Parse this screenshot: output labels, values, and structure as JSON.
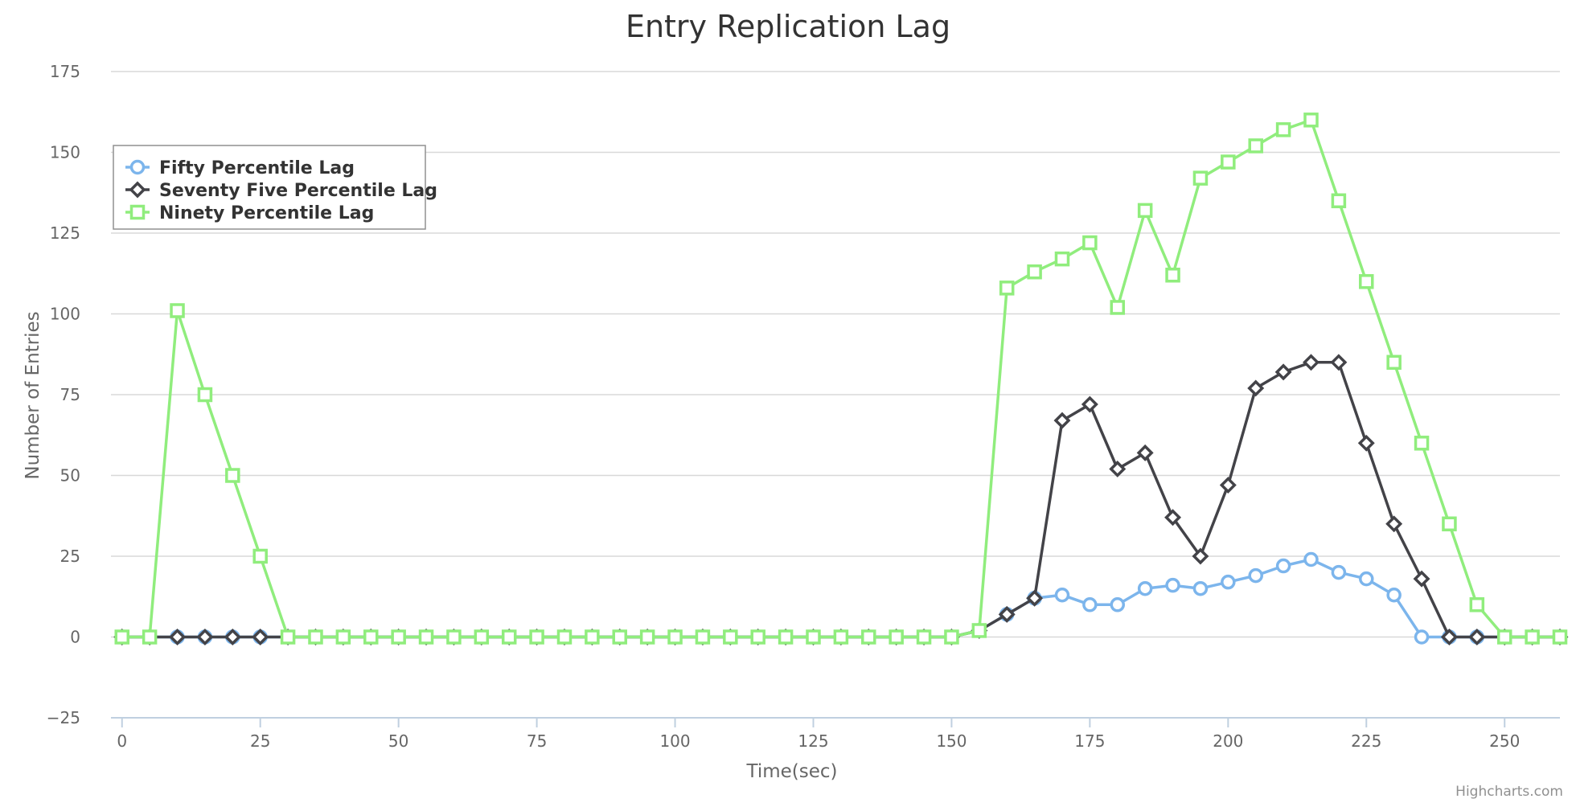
{
  "chart_data": {
    "type": "line",
    "title": "Entry Replication Lag",
    "xlabel": "Time(sec)",
    "ylabel": "Number of Entries",
    "xlim": [
      -2,
      260
    ],
    "ylim": [
      -25,
      175
    ],
    "x_ticks": [
      0,
      25,
      50,
      75,
      100,
      125,
      150,
      175,
      200,
      225,
      250
    ],
    "y_ticks": [
      -25,
      0,
      25,
      50,
      75,
      100,
      125,
      150,
      175
    ],
    "x_tick_labels": [
      "0",
      "25",
      "50",
      "75",
      "100",
      "125",
      "150",
      "175",
      "200",
      "225",
      "250"
    ],
    "y_tick_labels": [
      "−25",
      "0",
      "25",
      "50",
      "75",
      "100",
      "125",
      "150",
      "175"
    ],
    "grid": true,
    "legend_position": "top-left",
    "series": [
      {
        "name": "Fifty Percentile Lag",
        "color": "#7cb5ec",
        "marker": "circle",
        "x": [
          0,
          5,
          10,
          15,
          20,
          25,
          30,
          35,
          40,
          45,
          50,
          55,
          60,
          65,
          70,
          75,
          80,
          85,
          90,
          95,
          100,
          105,
          110,
          115,
          120,
          125,
          130,
          135,
          140,
          145,
          150,
          155,
          160,
          165,
          170,
          175,
          180,
          185,
          190,
          195,
          200,
          205,
          210,
          215,
          220,
          225,
          230,
          235,
          240,
          245,
          250,
          255,
          260
        ],
        "values": [
          0,
          0,
          0,
          0,
          0,
          0,
          0,
          0,
          0,
          0,
          0,
          0,
          0,
          0,
          0,
          0,
          0,
          0,
          0,
          0,
          0,
          0,
          0,
          0,
          0,
          0,
          0,
          0,
          0,
          0,
          0,
          2,
          7,
          12,
          13,
          10,
          10,
          15,
          16,
          15,
          17,
          19,
          22,
          24,
          20,
          18,
          13,
          0,
          0,
          0,
          0,
          0,
          0
        ]
      },
      {
        "name": "Seventy Five Percentile Lag",
        "color": "#434348",
        "marker": "diamond",
        "x": [
          0,
          5,
          10,
          15,
          20,
          25,
          30,
          35,
          40,
          45,
          50,
          55,
          60,
          65,
          70,
          75,
          80,
          85,
          90,
          95,
          100,
          105,
          110,
          115,
          120,
          125,
          130,
          135,
          140,
          145,
          150,
          155,
          160,
          165,
          170,
          175,
          180,
          185,
          190,
          195,
          200,
          205,
          210,
          215,
          220,
          225,
          230,
          235,
          240,
          245,
          250,
          255,
          260
        ],
        "values": [
          0,
          0,
          0,
          0,
          0,
          0,
          0,
          0,
          0,
          0,
          0,
          0,
          0,
          0,
          0,
          0,
          0,
          0,
          0,
          0,
          0,
          0,
          0,
          0,
          0,
          0,
          0,
          0,
          0,
          0,
          0,
          2,
          7,
          12,
          67,
          72,
          52,
          57,
          37,
          25,
          47,
          77,
          82,
          85,
          85,
          60,
          35,
          18,
          0,
          0,
          0,
          0,
          0
        ]
      },
      {
        "name": "Ninety Percentile Lag",
        "color": "#90ed7d",
        "marker": "square",
        "x": [
          0,
          5,
          10,
          15,
          20,
          25,
          30,
          35,
          40,
          45,
          50,
          55,
          60,
          65,
          70,
          75,
          80,
          85,
          90,
          95,
          100,
          105,
          110,
          115,
          120,
          125,
          130,
          135,
          140,
          145,
          150,
          155,
          160,
          165,
          170,
          175,
          180,
          185,
          190,
          195,
          200,
          205,
          210,
          215,
          220,
          225,
          230,
          235,
          240,
          245,
          250,
          255,
          260
        ],
        "values": [
          0,
          0,
          101,
          75,
          50,
          25,
          0,
          0,
          0,
          0,
          0,
          0,
          0,
          0,
          0,
          0,
          0,
          0,
          0,
          0,
          0,
          0,
          0,
          0,
          0,
          0,
          0,
          0,
          0,
          0,
          0,
          2,
          108,
          113,
          117,
          122,
          102,
          132,
          112,
          142,
          147,
          152,
          157,
          160,
          135,
          110,
          85,
          60,
          35,
          10,
          0,
          0,
          0
        ]
      }
    ],
    "credits": "Highcharts.com"
  }
}
